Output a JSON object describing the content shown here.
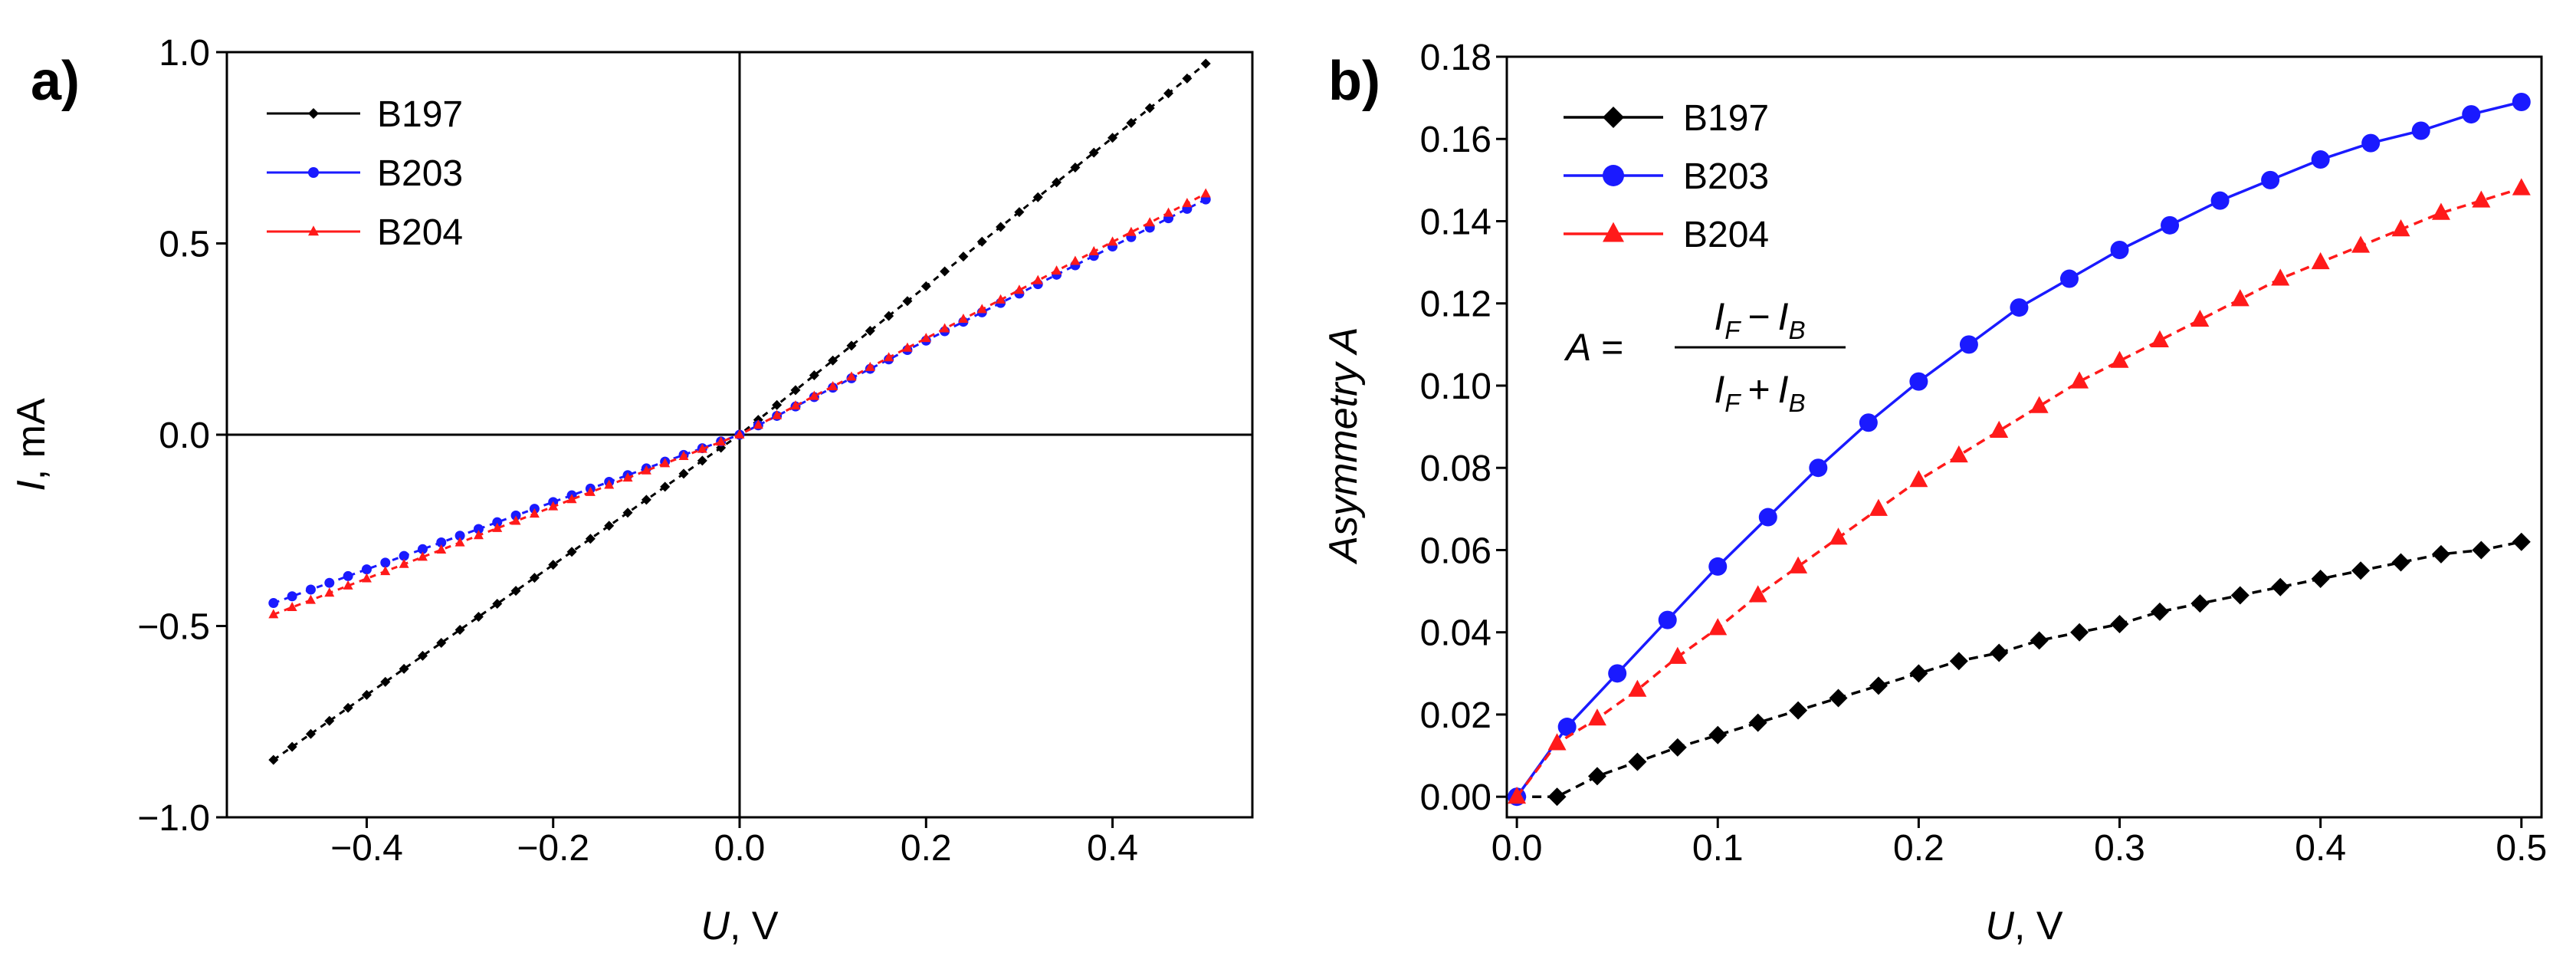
{
  "chart_data": [
    {
      "type": "line",
      "panel_label": "a)",
      "title": "",
      "xlabel": "U, V",
      "xlabel_var": "U",
      "xlabel_unit": ", V",
      "ylabel": "I, mA",
      "ylabel_var": "I",
      "ylabel_unit": ", mA",
      "xlim": [
        -0.55,
        0.55
      ],
      "ylim": [
        -1.0,
        1.0
      ],
      "xticks": [
        -0.4,
        -0.2,
        0.0,
        0.2,
        0.4
      ],
      "xtick_labels": [
        "−0.4",
        "−0.2",
        "0.0",
        "0.2",
        "0.4"
      ],
      "yticks": [
        -1.0,
        -0.5,
        0.0,
        0.5,
        1.0
      ],
      "ytick_labels": [
        "−1.0",
        "−0.5",
        "0.0",
        "0.5",
        "1.0"
      ],
      "zero_lines": true,
      "legend_position": "top-left",
      "series": [
        {
          "name": "B197",
          "color": "#000000",
          "marker": "diamond",
          "dashed": true,
          "neg_slope": 1.7,
          "pos_slope": 1.94
        },
        {
          "name": "B203",
          "color": "#1a1aff",
          "marker": "circle",
          "dashed": true,
          "neg_slope": 0.88,
          "pos_slope": 1.23
        },
        {
          "name": "B204",
          "color": "#ff1a1a",
          "marker": "triangle",
          "dashed": true,
          "neg_slope": 0.94,
          "pos_slope": 1.26
        }
      ]
    },
    {
      "type": "line",
      "panel_label": "b)",
      "title": "",
      "xlabel": "U, V",
      "xlabel_var": "U",
      "xlabel_unit": ", V",
      "ylabel": "Asymmetry A",
      "xlim": [
        -0.005,
        0.51
      ],
      "ylim": [
        -0.005,
        0.18
      ],
      "xticks": [
        0.0,
        0.1,
        0.2,
        0.3,
        0.4,
        0.5
      ],
      "xtick_labels": [
        "0.0",
        "0.1",
        "0.2",
        "0.3",
        "0.4",
        "0.5"
      ],
      "yticks": [
        0.0,
        0.02,
        0.04,
        0.06,
        0.08,
        0.1,
        0.12,
        0.14,
        0.16,
        0.18
      ],
      "ytick_labels": [
        "0.00",
        "0.02",
        "0.04",
        "0.06",
        "0.08",
        "0.10",
        "0.12",
        "0.14",
        "0.16",
        "0.18"
      ],
      "legend_position": "top-left",
      "annotation": {
        "lhs": "A =",
        "numerator": "I_F − I_B",
        "denominator": "I_F + I_B",
        "var": "I",
        "sub_f": "F",
        "sub_b": "B",
        "op_minus": "−",
        "op_plus": "+"
      },
      "series": [
        {
          "name": "B197",
          "color": "#000000",
          "marker": "diamond",
          "dashed": true,
          "x": [
            0.0,
            0.02,
            0.04,
            0.06,
            0.08,
            0.1,
            0.12,
            0.14,
            0.16,
            0.18,
            0.2,
            0.22,
            0.24,
            0.26,
            0.28,
            0.3,
            0.32,
            0.34,
            0.36,
            0.38,
            0.4,
            0.42,
            0.44,
            0.46,
            0.48,
            0.5
          ],
          "y": [
            0.0,
            0.0,
            0.005,
            0.0085,
            0.012,
            0.015,
            0.018,
            0.021,
            0.024,
            0.027,
            0.03,
            0.033,
            0.035,
            0.038,
            0.04,
            0.042,
            0.045,
            0.047,
            0.049,
            0.051,
            0.053,
            0.055,
            0.057,
            0.059,
            0.06,
            0.062
          ]
        },
        {
          "name": "B203",
          "color": "#1a1aff",
          "marker": "circle",
          "dashed": false,
          "x": [
            0.0,
            0.025,
            0.05,
            0.075,
            0.1,
            0.125,
            0.15,
            0.175,
            0.2,
            0.225,
            0.25,
            0.275,
            0.3,
            0.325,
            0.35,
            0.375,
            0.4,
            0.425,
            0.45,
            0.475,
            0.5
          ],
          "y": [
            0.0,
            0.017,
            0.03,
            0.043,
            0.056,
            0.068,
            0.08,
            0.091,
            0.101,
            0.11,
            0.119,
            0.126,
            0.133,
            0.139,
            0.145,
            0.15,
            0.155,
            0.159,
            0.162,
            0.166,
            0.169
          ]
        },
        {
          "name": "B204",
          "color": "#ff1a1a",
          "marker": "triangle",
          "dashed": true,
          "x": [
            0.0,
            0.02,
            0.04,
            0.06,
            0.08,
            0.1,
            0.12,
            0.14,
            0.16,
            0.18,
            0.2,
            0.22,
            0.24,
            0.26,
            0.28,
            0.3,
            0.32,
            0.34,
            0.36,
            0.38,
            0.4,
            0.42,
            0.44,
            0.46,
            0.48,
            0.5
          ],
          "y": [
            0.0,
            0.013,
            0.019,
            0.026,
            0.034,
            0.041,
            0.049,
            0.056,
            0.063,
            0.07,
            0.077,
            0.083,
            0.089,
            0.095,
            0.101,
            0.106,
            0.111,
            0.116,
            0.121,
            0.126,
            0.13,
            0.134,
            0.138,
            0.142,
            0.145,
            0.148
          ]
        }
      ]
    }
  ]
}
